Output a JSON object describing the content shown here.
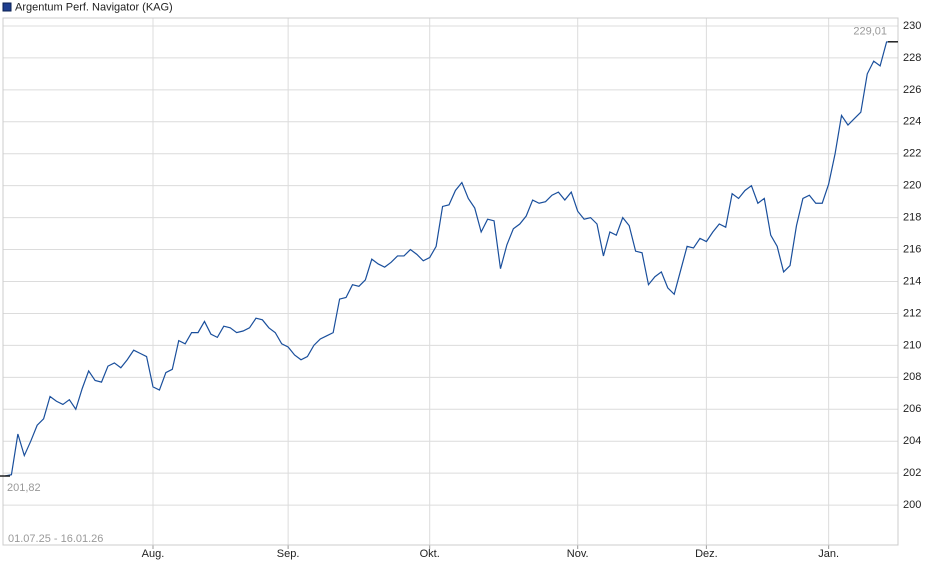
{
  "chart_data": {
    "type": "line",
    "date_range": "01.07.25 - 16.01.26",
    "categories": [
      null,
      null,
      null,
      null,
      null,
      null,
      null,
      null,
      null,
      null,
      null,
      null,
      null,
      null,
      null,
      null,
      null,
      null,
      null,
      null,
      null,
      null,
      null,
      "Aug.",
      null,
      null,
      null,
      null,
      null,
      null,
      null,
      null,
      null,
      null,
      null,
      null,
      null,
      null,
      null,
      null,
      null,
      null,
      null,
      null,
      "Sep.",
      null,
      null,
      null,
      null,
      null,
      null,
      null,
      null,
      null,
      null,
      null,
      null,
      null,
      null,
      null,
      null,
      null,
      null,
      null,
      null,
      null,
      "Okt.",
      null,
      null,
      null,
      null,
      null,
      null,
      null,
      null,
      null,
      null,
      null,
      null,
      null,
      null,
      null,
      null,
      null,
      null,
      null,
      null,
      null,
      null,
      "Nov.",
      null,
      null,
      null,
      null,
      null,
      null,
      null,
      null,
      null,
      null,
      null,
      null,
      null,
      null,
      null,
      null,
      null,
      null,
      null,
      "Dez.",
      null,
      null,
      null,
      null,
      null,
      null,
      null,
      null,
      null,
      null,
      null,
      null,
      null,
      null,
      null,
      null,
      null,
      null,
      "Jan.",
      null,
      null,
      null,
      null,
      null,
      null,
      null,
      null,
      null,
      null
    ],
    "series": [
      {
        "name": "Argentum Perf. Navigator (KAG)",
        "color": "#1a4f9c",
        "values": [
          201.82,
          201.9,
          204.45,
          203.1,
          204.0,
          205.0,
          205.4,
          206.8,
          206.5,
          206.3,
          206.6,
          206.0,
          207.3,
          208.4,
          207.8,
          207.7,
          208.7,
          208.9,
          208.6,
          209.1,
          209.7,
          209.5,
          209.3,
          207.4,
          207.2,
          208.3,
          208.5,
          210.3,
          210.1,
          210.8,
          210.8,
          211.5,
          210.7,
          210.5,
          211.2,
          211.1,
          210.8,
          210.9,
          211.1,
          211.7,
          211.6,
          211.1,
          210.8,
          210.1,
          209.9,
          209.4,
          209.1,
          209.3,
          210.0,
          210.4,
          210.6,
          210.8,
          212.9,
          213.0,
          213.8,
          213.7,
          214.1,
          215.4,
          215.1,
          214.9,
          215.2,
          215.6,
          215.6,
          216.0,
          215.7,
          215.3,
          215.5,
          216.2,
          218.7,
          218.8,
          219.7,
          220.2,
          219.2,
          218.6,
          217.1,
          217.9,
          217.8,
          214.8,
          216.3,
          217.3,
          217.6,
          218.1,
          219.1,
          218.9,
          219.0,
          219.4,
          219.6,
          219.1,
          219.6,
          218.4,
          217.9,
          218.0,
          217.6,
          215.6,
          217.1,
          216.9,
          218.0,
          217.5,
          215.9,
          215.8,
          213.8,
          214.3,
          214.6,
          213.6,
          213.2,
          214.7,
          216.2,
          216.1,
          216.7,
          216.5,
          217.1,
          217.6,
          217.4,
          219.5,
          219.2,
          219.7,
          220.0,
          218.9,
          219.2,
          216.9,
          216.2,
          214.6,
          215.0,
          217.5,
          219.2,
          219.4,
          218.9,
          218.9,
          220.1,
          222.0,
          224.4,
          223.8,
          224.2,
          224.6,
          227.0,
          227.8,
          227.5,
          229.0,
          229.01
        ],
        "value_labels": [
          "201,82",
          null,
          null,
          null,
          null,
          null,
          null,
          null,
          null,
          null,
          null,
          null,
          null,
          null,
          null,
          null,
          null,
          null,
          null,
          null,
          null,
          null,
          null,
          null,
          null,
          null,
          null,
          null,
          null,
          null,
          null,
          null,
          null,
          null,
          null,
          null,
          null,
          null,
          null,
          null,
          null,
          null,
          null,
          null,
          null,
          null,
          null,
          null,
          null,
          null,
          null,
          null,
          null,
          null,
          null,
          null,
          null,
          null,
          null,
          null,
          null,
          null,
          null,
          null,
          null,
          null,
          null,
          null,
          null,
          null,
          null,
          null,
          null,
          null,
          null,
          null,
          null,
          null,
          null,
          null,
          null,
          null,
          null,
          null,
          null,
          null,
          null,
          null,
          null,
          null,
          null,
          null,
          null,
          null,
          null,
          null,
          null,
          null,
          null,
          null,
          null,
          null,
          null,
          null,
          null,
          null,
          null,
          null,
          null,
          null,
          null,
          null,
          null,
          null,
          null,
          null,
          null,
          null,
          null,
          null,
          null,
          null,
          null,
          null,
          null,
          null,
          null,
          null,
          null,
          null,
          null,
          null,
          null,
          null,
          null,
          null,
          null,
          null,
          "229,01"
        ]
      }
    ],
    "ylim": [
      197.5,
      230.5
    ],
    "yticks": [
      200,
      202,
      204,
      206,
      208,
      210,
      212,
      214,
      216,
      218,
      220,
      222,
      224,
      226,
      228,
      230
    ],
    "grid": true
  }
}
